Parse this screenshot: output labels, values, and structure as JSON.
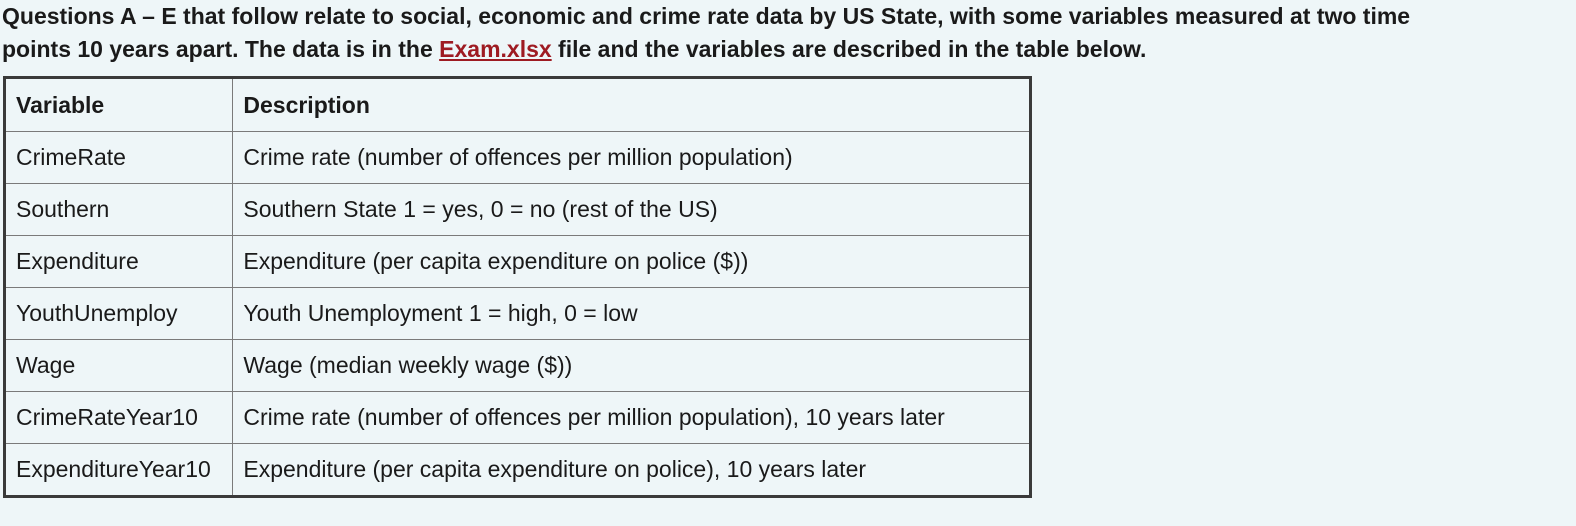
{
  "intro": {
    "line1": "Questions A – E that follow relate to social, economic and crime rate data by US State, with some variables measured at two time",
    "line2_before": "points 10 years apart.  The data is in the ",
    "link": "Exam.xlsx",
    "line2_after": " file and the variables are described in the table below."
  },
  "table": {
    "headers": [
      "Variable",
      "Description"
    ],
    "rows": [
      [
        "CrimeRate",
        "Crime rate (number of offences per million population)"
      ],
      [
        "Southern",
        "Southern State 1 = yes, 0 = no (rest of the US)"
      ],
      [
        "Expenditure",
        "Expenditure (per capita expenditure on police ($))"
      ],
      [
        "YouthUnemploy",
        "Youth Unemployment 1 = high, 0 = low"
      ],
      [
        "Wage",
        "Wage (median weekly wage ($))"
      ],
      [
        "CrimeRateYear10",
        "Crime rate (number of offences per million population), 10 years later"
      ],
      [
        "ExpenditureYear10",
        "Expenditure (per capita expenditure on police), 10 years later"
      ]
    ]
  },
  "colors": {
    "background": "#eef6f8",
    "link": "#9e1b22",
    "text": "#1a1a1a"
  }
}
